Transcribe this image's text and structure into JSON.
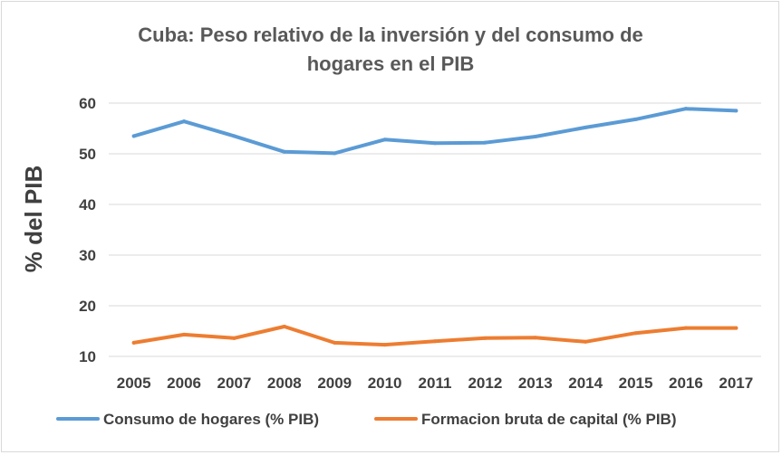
{
  "chart_data": {
    "type": "line",
    "title_lines": [
      "Cuba: Peso relativo de la inversión y del consumo de",
      "hogares en el PIB"
    ],
    "title": "Cuba: Peso relativo de la inversión y del consumo de hogares en el PIB",
    "xlabel": "",
    "ylabel": "% del PIB",
    "categories": [
      "2005",
      "2006",
      "2007",
      "2008",
      "2009",
      "2010",
      "2011",
      "2012",
      "2013",
      "2014",
      "2015",
      "2016",
      "2017"
    ],
    "yticks": [
      "10",
      "20",
      "30",
      "40",
      "50",
      "60"
    ],
    "ylim": [
      10,
      60
    ],
    "grid": true,
    "legend_position": "bottom",
    "series": [
      {
        "name": "Consumo de hogares (% PIB)",
        "color": "#5b9bd5",
        "values": [
          53.5,
          56.4,
          53.5,
          50.4,
          50.1,
          52.8,
          52.1,
          52.2,
          53.4,
          55.2,
          56.8,
          58.9,
          58.5
        ]
      },
      {
        "name": "Formacion bruta de capital (% PIB)",
        "color": "#ed7d31",
        "values": [
          12.7,
          14.3,
          13.6,
          15.9,
          12.7,
          12.3,
          13.0,
          13.6,
          13.7,
          12.9,
          14.6,
          15.6,
          15.6
        ]
      }
    ]
  }
}
